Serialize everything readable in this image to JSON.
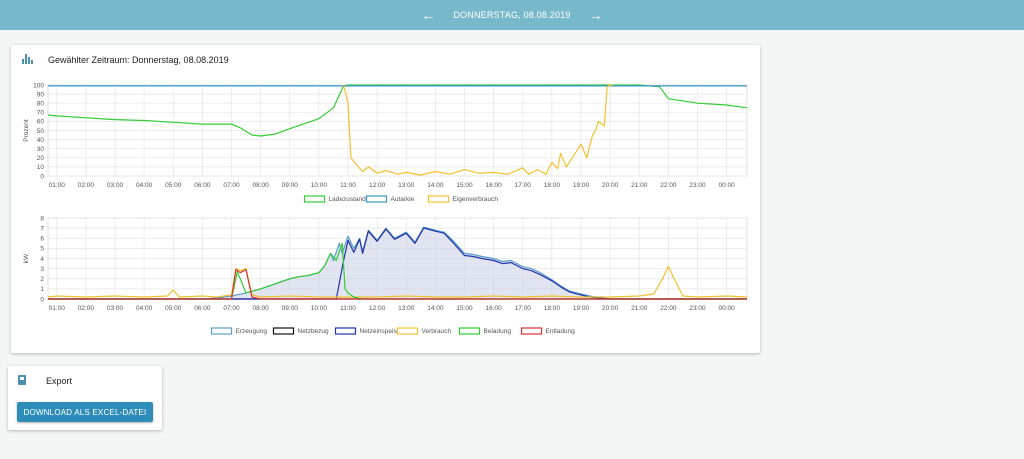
{
  "topbar": {
    "date": "DONNERSTAG, 08.08.2019",
    "prev_icon": "arrow-left-icon",
    "next_icon": "arrow-right-icon"
  },
  "main_card": {
    "title": "Gewählter Zeitraum: Donnerstag, 08.08.2019",
    "icon": "bar-chart-icon"
  },
  "export_card": {
    "title": "Export",
    "icon": "document-icon",
    "button_label": "DOWNLOAD ALS EXCEL-DATEI"
  },
  "colors": {
    "Ladezustand": "#33cc33",
    "Autarkie": "#3399cc",
    "Eigenverbrauch": "#f2c12e",
    "Erzeugung": "#5b9ec9",
    "Netzbezug": "#111111",
    "Netzeinspeisung": "#2233aa",
    "Verbrauch": "#f2c12e",
    "Beladung": "#33cc33",
    "Entladung": "#dd3333"
  },
  "chart_data": [
    {
      "type": "line",
      "ylabel": "Prozent",
      "ylim": [
        0,
        100
      ],
      "yticks": [
        0,
        10,
        20,
        30,
        40,
        50,
        60,
        70,
        80,
        90,
        100
      ],
      "xlabels": [
        "01:00",
        "02:00",
        "03:00",
        "04:00",
        "05:00",
        "06:00",
        "07:00",
        "08:00",
        "09:00",
        "10:00",
        "11:00",
        "12:00",
        "13:00",
        "14:00",
        "15:00",
        "16:00",
        "17:00",
        "18:00",
        "19:00",
        "20:00",
        "21:00",
        "22:00",
        "23:00",
        "00:00"
      ],
      "legend_position": "bottom",
      "grid": true,
      "series": [
        {
          "name": "Ladezustand",
          "x": [
            0.7,
            1,
            2,
            3,
            4,
            5,
            6,
            7,
            7.3,
            7.7,
            8,
            8.5,
            9,
            10,
            10.5,
            10.85,
            11,
            12,
            13,
            14,
            15,
            16,
            17,
            18,
            19,
            20,
            20.5,
            21,
            21.7,
            22,
            23,
            24,
            24.7
          ],
          "values": [
            67,
            66,
            64,
            62,
            61,
            59,
            57,
            57,
            53,
            45,
            44,
            46,
            52,
            63,
            75,
            99,
            100,
            100,
            100,
            100,
            100,
            100,
            100,
            100,
            100,
            100,
            100,
            100,
            98,
            85,
            80,
            78,
            75
          ]
        },
        {
          "name": "Autarkie",
          "x": [
            0.7,
            3,
            6,
            10,
            12,
            16,
            20,
            24,
            24.7
          ],
          "values": [
            99,
            99,
            99,
            99,
            99,
            99,
            99,
            99,
            99
          ]
        },
        {
          "name": "Eigenverbrauch",
          "x": [
            10.85,
            11,
            11.1,
            11.3,
            11.5,
            11.7,
            12,
            12.3,
            12.7,
            13,
            13.5,
            14,
            14.5,
            15,
            15.5,
            16,
            16.5,
            17,
            17.2,
            17.5,
            17.8,
            18,
            18.2,
            18.3,
            18.5,
            18.7,
            19,
            19.2,
            19.4,
            19.5,
            19.6,
            19.8,
            19.9,
            20,
            20.1
          ],
          "values": [
            100,
            80,
            20,
            12,
            5,
            10,
            3,
            6,
            2,
            4,
            1,
            5,
            2,
            7,
            3,
            4,
            2,
            9,
            2,
            7,
            2,
            15,
            8,
            25,
            10,
            20,
            35,
            20,
            45,
            50,
            60,
            55,
            98,
            100,
            100
          ]
        }
      ]
    },
    {
      "type": "line",
      "ylabel": "kW",
      "ylim": [
        0,
        8
      ],
      "yticks": [
        0,
        1,
        2,
        3,
        4,
        5,
        6,
        7,
        8
      ],
      "xlabels": [
        "01:00",
        "02:00",
        "03:00",
        "04:00",
        "05:00",
        "06:00",
        "07:00",
        "08:00",
        "09:00",
        "10:00",
        "11:00",
        "12:00",
        "13:00",
        "14:00",
        "15:00",
        "16:00",
        "17:00",
        "18:00",
        "19:00",
        "20:00",
        "21:00",
        "22:00",
        "23:00",
        "00:00"
      ],
      "legend_position": "bottom",
      "grid": true,
      "series": [
        {
          "name": "Erzeugung",
          "x": [
            0.7,
            6,
            6.5,
            7,
            7.5,
            8,
            8.5,
            9,
            9.3,
            9.6,
            10,
            10.2,
            10.4,
            10.5,
            10.7,
            10.8,
            11,
            11.2,
            11.4,
            11.5,
            11.7,
            12,
            12.3,
            12.6,
            13,
            13.3,
            13.6,
            14,
            14.3,
            14.6,
            15,
            15.3,
            15.6,
            16,
            16.3,
            16.6,
            17,
            17.3,
            17.6,
            18,
            18.3,
            18.6,
            19,
            19.3,
            19.6,
            20,
            24.7
          ],
          "values": [
            0,
            0,
            0.1,
            0.3,
            0.6,
            1.0,
            1.5,
            2.0,
            2.2,
            2.3,
            2.6,
            3.3,
            4.5,
            3.8,
            5.5,
            4.5,
            6.2,
            5.0,
            6.0,
            4.7,
            6.8,
            5.8,
            7.0,
            6.0,
            6.6,
            5.6,
            7.1,
            6.8,
            6.6,
            5.8,
            4.5,
            4.4,
            4.2,
            4.0,
            3.7,
            3.8,
            3.2,
            3.0,
            2.6,
            1.9,
            1.3,
            0.8,
            0.5,
            0.3,
            0.15,
            0,
            0
          ]
        },
        {
          "name": "Netzbezug",
          "x": [
            0.7,
            10.6,
            10.65,
            10.9,
            11,
            24.7
          ],
          "values": [
            0,
            0,
            0,
            0,
            0,
            0
          ]
        },
        {
          "name": "Netzeinspeisung",
          "x": [
            0.7,
            10.6,
            10.85,
            11,
            11.2,
            11.4,
            11.5,
            11.7,
            12,
            12.3,
            12.6,
            13,
            13.3,
            13.6,
            14,
            14.3,
            14.6,
            15,
            15.3,
            15.6,
            16,
            16.3,
            16.6,
            17,
            17.3,
            17.6,
            18,
            18.3,
            18.6,
            19,
            19.3,
            19.6,
            20,
            24.7
          ],
          "values": [
            0,
            0,
            3.8,
            5.8,
            4.6,
            5.9,
            4.5,
            6.7,
            5.7,
            6.9,
            5.9,
            6.5,
            5.5,
            7.0,
            6.7,
            6.5,
            5.6,
            4.3,
            4.2,
            4.0,
            3.8,
            3.5,
            3.6,
            3.0,
            2.8,
            2.4,
            1.8,
            1.2,
            0.7,
            0.4,
            0.2,
            0.1,
            0,
            0
          ]
        },
        {
          "name": "Verbrauch",
          "x": [
            0.7,
            1,
            2,
            3,
            4,
            4.8,
            5,
            5.2,
            6,
            6.5,
            7,
            7.15,
            7.3,
            7.5,
            7.7,
            8,
            9,
            10,
            11,
            12,
            13,
            14,
            15,
            16,
            17,
            18,
            19,
            20,
            21,
            21.5,
            21.8,
            22,
            22.2,
            22.5,
            23,
            24,
            24.7
          ],
          "values": [
            0.2,
            0.3,
            0.2,
            0.3,
            0.2,
            0.3,
            0.9,
            0.2,
            0.3,
            0.2,
            0.4,
            3.0,
            2.8,
            3.0,
            0.4,
            0.2,
            0.3,
            0.2,
            0.2,
            0.2,
            0.3,
            0.2,
            0.2,
            0.3,
            0.2,
            0.3,
            0.2,
            0.2,
            0.3,
            0.5,
            2.0,
            3.2,
            2.0,
            0.3,
            0.2,
            0.3,
            0.2
          ]
        },
        {
          "name": "Beladung",
          "x": [
            0.7,
            6,
            7,
            7.2,
            7.5,
            8,
            8.5,
            9,
            9.3,
            9.6,
            10,
            10.2,
            10.4,
            10.6,
            10.8,
            10.9,
            11,
            11.2,
            11.4,
            11.5,
            24.7
          ],
          "values": [
            0,
            0,
            0,
            2.7,
            0.6,
            1.0,
            1.5,
            2.0,
            2.2,
            2.3,
            2.6,
            3.3,
            4.5,
            3.8,
            5.5,
            1.0,
            0.6,
            0.2,
            0.05,
            0,
            0
          ]
        },
        {
          "name": "Entladung",
          "x": [
            0.7,
            7,
            7.15,
            7.3,
            7.5,
            7.7,
            8,
            24.7
          ],
          "values": [
            0,
            0,
            2.9,
            2.6,
            2.9,
            0.2,
            0,
            0
          ]
        }
      ]
    }
  ]
}
